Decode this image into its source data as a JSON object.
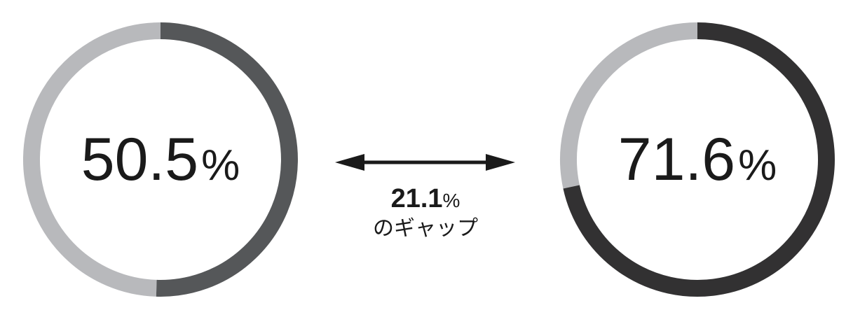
{
  "chart_data": {
    "type": "pie",
    "charts": [
      {
        "value": 50.5,
        "unit": "%",
        "label_number": "50.5",
        "colors": {
          "filled": "#555759",
          "remainder": "#b8b9bc"
        }
      },
      {
        "value": 71.6,
        "unit": "%",
        "label_number": "71.6",
        "colors": {
          "filled": "#323132",
          "remainder": "#b8b9bc"
        }
      }
    ],
    "gap": {
      "value": "21.1",
      "unit": "%",
      "caption": "のギャップ"
    },
    "colors": {
      "arrow": "#1a1a1a",
      "text": "#1a1a1a",
      "background": "#ffffff"
    }
  }
}
